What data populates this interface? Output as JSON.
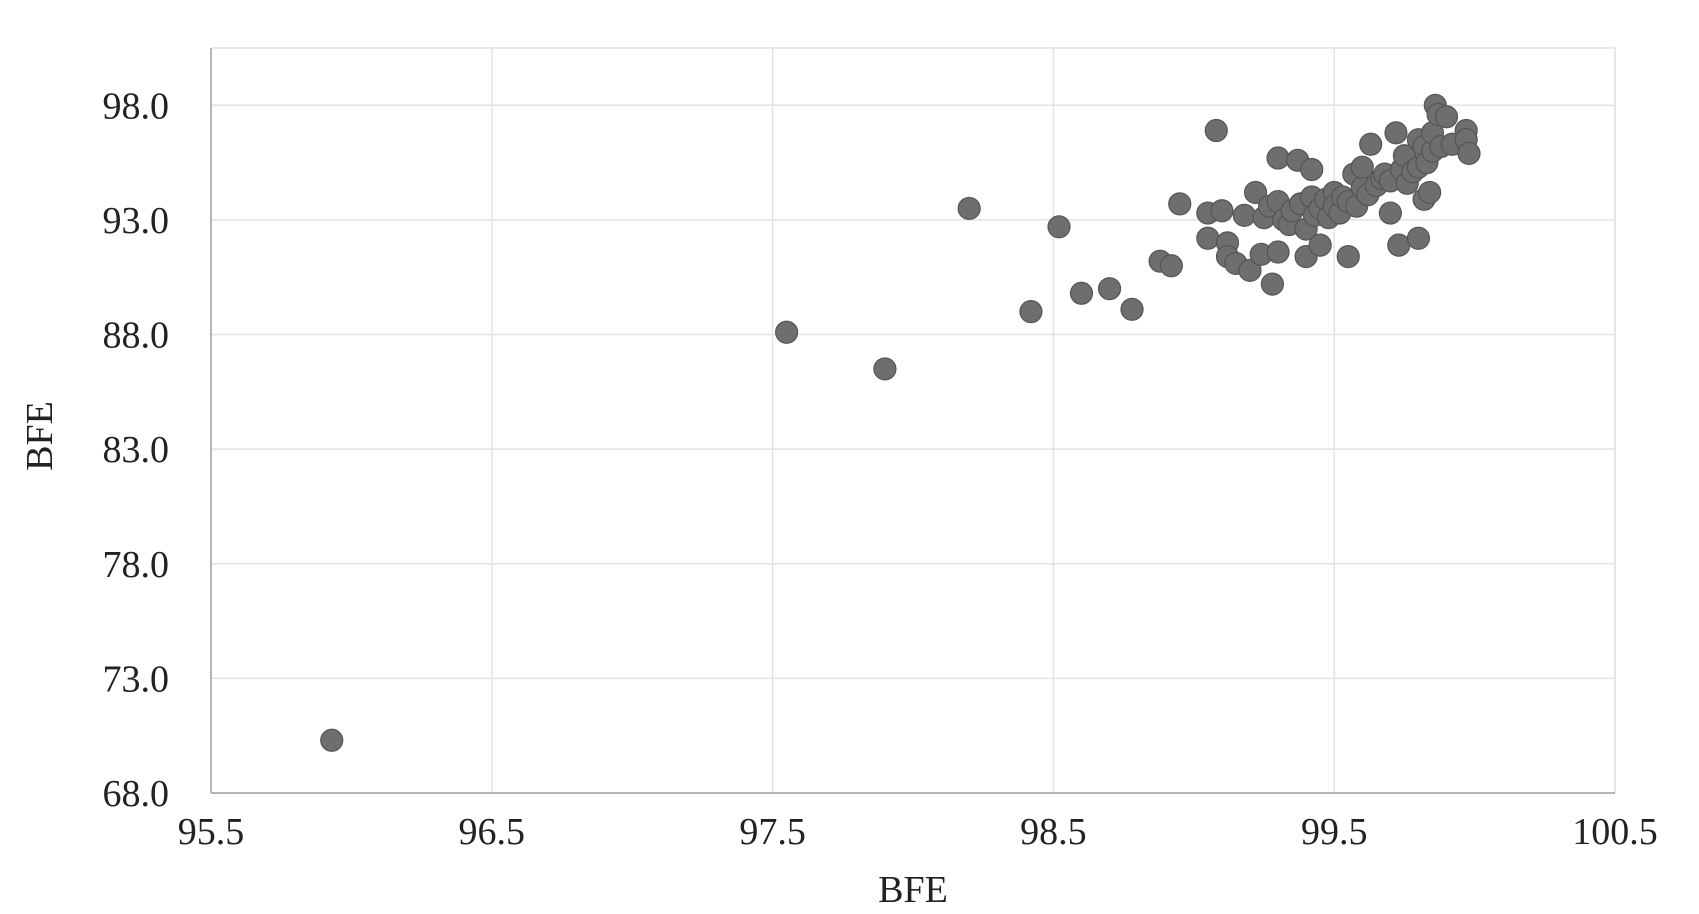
{
  "chart_data": {
    "type": "scatter",
    "title": "",
    "xlabel": "BFE",
    "ylabel": "BFE",
    "xlim": [
      95.5,
      100.5
    ],
    "ylim": [
      68.0,
      100.5
    ],
    "xticks": [
      95.5,
      96.5,
      97.5,
      98.5,
      99.5,
      100.5
    ],
    "xtick_labels": [
      "95.5",
      "96.5",
      "97.5",
      "98.5",
      "99.5",
      "100.5"
    ],
    "yticks": [
      68.0,
      73.0,
      78.0,
      83.0,
      88.0,
      93.0,
      98.0
    ],
    "ytick_labels": [
      "68.0",
      "73.0",
      "78.0",
      "83.0",
      "88.0",
      "93.0",
      "98.0"
    ],
    "grid": true,
    "legend": "none",
    "marker_color": "#6e6e6e",
    "series": [
      {
        "points": [
          [
            95.93,
            70.3
          ],
          [
            97.55,
            88.1
          ],
          [
            97.9,
            86.5
          ],
          [
            98.2,
            93.5
          ],
          [
            98.42,
            89.0
          ],
          [
            98.52,
            92.7
          ],
          [
            98.6,
            89.8
          ],
          [
            98.7,
            90.0
          ],
          [
            98.78,
            89.1
          ],
          [
            98.88,
            91.2
          ],
          [
            98.92,
            91.0
          ],
          [
            98.95,
            93.7
          ],
          [
            99.05,
            93.3
          ],
          [
            99.05,
            92.2
          ],
          [
            99.08,
            96.9
          ],
          [
            99.1,
            93.4
          ],
          [
            99.12,
            92.0
          ],
          [
            99.12,
            91.4
          ],
          [
            99.15,
            91.1
          ],
          [
            99.18,
            93.2
          ],
          [
            99.2,
            90.8
          ],
          [
            99.22,
            94.2
          ],
          [
            99.24,
            91.5
          ],
          [
            99.25,
            93.1
          ],
          [
            99.27,
            93.6
          ],
          [
            99.28,
            90.2
          ],
          [
            99.3,
            95.7
          ],
          [
            99.3,
            91.6
          ],
          [
            99.3,
            93.8
          ],
          [
            99.32,
            93.0
          ],
          [
            99.34,
            92.8
          ],
          [
            99.35,
            93.4
          ],
          [
            99.37,
            95.6
          ],
          [
            99.38,
            93.7
          ],
          [
            99.4,
            92.6
          ],
          [
            99.4,
            91.4
          ],
          [
            99.42,
            95.2
          ],
          [
            99.42,
            94.0
          ],
          [
            99.43,
            93.2
          ],
          [
            99.45,
            91.9
          ],
          [
            99.45,
            93.5
          ],
          [
            99.47,
            93.9
          ],
          [
            99.48,
            93.1
          ],
          [
            99.5,
            94.2
          ],
          [
            99.5,
            93.6
          ],
          [
            99.52,
            93.3
          ],
          [
            99.53,
            94.0
          ],
          [
            99.55,
            91.4
          ],
          [
            99.55,
            93.8
          ],
          [
            99.57,
            95.0
          ],
          [
            99.58,
            93.6
          ],
          [
            99.6,
            94.4
          ],
          [
            99.6,
            95.3
          ],
          [
            99.62,
            94.1
          ],
          [
            99.63,
            96.3
          ],
          [
            99.65,
            94.5
          ],
          [
            99.67,
            94.8
          ],
          [
            99.68,
            95.0
          ],
          [
            99.7,
            93.3
          ],
          [
            99.7,
            94.7
          ],
          [
            99.72,
            96.8
          ],
          [
            99.73,
            91.9
          ],
          [
            99.74,
            95.2
          ],
          [
            99.75,
            95.8
          ],
          [
            99.76,
            94.6
          ],
          [
            99.78,
            95.1
          ],
          [
            99.8,
            96.5
          ],
          [
            99.8,
            95.3
          ],
          [
            99.8,
            92.2
          ],
          [
            99.82,
            96.2
          ],
          [
            99.82,
            93.9
          ],
          [
            99.83,
            95.5
          ],
          [
            99.84,
            94.2
          ],
          [
            99.85,
            96.0
          ],
          [
            99.85,
            96.8
          ],
          [
            99.86,
            98.0
          ],
          [
            99.87,
            97.6
          ],
          [
            99.88,
            96.2
          ],
          [
            99.9,
            97.5
          ],
          [
            99.92,
            96.3
          ],
          [
            99.97,
            96.9
          ],
          [
            99.97,
            96.5
          ],
          [
            99.98,
            95.9
          ]
        ]
      }
    ]
  }
}
